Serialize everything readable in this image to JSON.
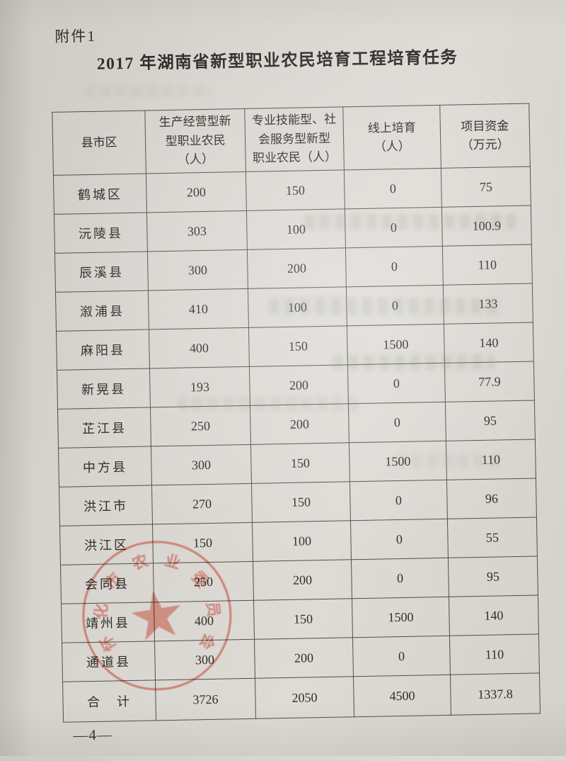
{
  "page": {
    "attachment_label": "附件1",
    "title": "2017 年湖南省新型职业农民培育工程培育任务",
    "page_number": "—4—"
  },
  "table": {
    "columns": [
      "县市区",
      "生产经营型新\n型职业农民\n（人）",
      "专业技能型、社\n会服务型新型\n职业农民（人）",
      "线上培育\n（人）",
      "项目资金\n（万元）"
    ],
    "rows": [
      {
        "region": "鹤城区",
        "production": "200",
        "skill": "150",
        "online": "0",
        "funds": "75"
      },
      {
        "region": "沅陵县",
        "production": "303",
        "skill": "100",
        "online": "0",
        "funds": "100.9"
      },
      {
        "region": "辰溪县",
        "production": "300",
        "skill": "200",
        "online": "0",
        "funds": "110"
      },
      {
        "region": "溆浦县",
        "production": "410",
        "skill": "100",
        "online": "0",
        "funds": "133"
      },
      {
        "region": "麻阳县",
        "production": "400",
        "skill": "150",
        "online": "1500",
        "funds": "140"
      },
      {
        "region": "新晃县",
        "production": "193",
        "skill": "200",
        "online": "0",
        "funds": "77.9"
      },
      {
        "region": "芷江县",
        "production": "250",
        "skill": "200",
        "online": "0",
        "funds": "95"
      },
      {
        "region": "中方县",
        "production": "300",
        "skill": "150",
        "online": "1500",
        "funds": "110"
      },
      {
        "region": "洪江市",
        "production": "270",
        "skill": "150",
        "online": "0",
        "funds": "96"
      },
      {
        "region": "洪江区",
        "production": "150",
        "skill": "100",
        "online": "0",
        "funds": "55"
      },
      {
        "region": "会同县",
        "production": "250",
        "skill": "200",
        "online": "0",
        "funds": "95"
      },
      {
        "region": "靖州县",
        "production": "400",
        "skill": "150",
        "online": "1500",
        "funds": "140"
      },
      {
        "region": "通道县",
        "production": "300",
        "skill": "200",
        "online": "0",
        "funds": "110"
      }
    ],
    "total_row": {
      "region": "合　计",
      "production": "3726",
      "skill": "2050",
      "online": "4500",
      "funds": "1337.8"
    }
  },
  "stamp": {
    "type": "circular-red-official-seal",
    "arc_text": "怀化市农业委员会",
    "star_icon": "★",
    "color": "#c1463a",
    "legibility": "partial"
  }
}
